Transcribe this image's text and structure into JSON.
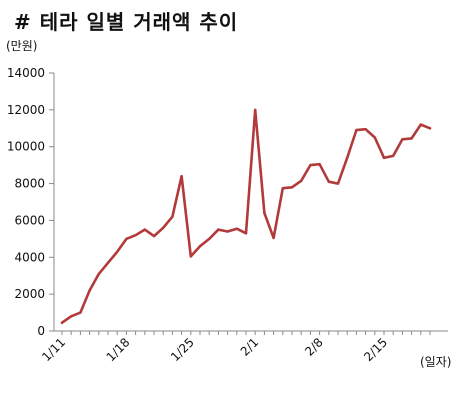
{
  "chart_data": {
    "type": "line",
    "title": "# 테라 일별 거래액 추이",
    "y_unit_label": "(만원)",
    "x_unit_label": "(일자)",
    "ylim": [
      0,
      14000
    ],
    "y_ticks": [
      0,
      2000,
      4000,
      6000,
      8000,
      10000,
      12000,
      14000
    ],
    "x_tick_labels": [
      "1/11",
      "1/18",
      "1/25",
      "2/1",
      "2/8",
      "2/15"
    ],
    "series_color": "#b23a3a",
    "grid": false,
    "x": [
      "1/11",
      "1/12",
      "1/13",
      "1/14",
      "1/15",
      "1/16",
      "1/17",
      "1/18",
      "1/19",
      "1/20",
      "1/21",
      "1/22",
      "1/23",
      "1/24",
      "1/25",
      "1/26",
      "1/27",
      "1/28",
      "1/29",
      "1/30",
      "1/31",
      "2/1",
      "2/2",
      "2/3",
      "2/4",
      "2/5",
      "2/6",
      "2/7",
      "2/8",
      "2/9",
      "2/10",
      "2/11",
      "2/12",
      "2/13",
      "2/14",
      "2/15",
      "2/16",
      "2/17",
      "2/18",
      "2/19",
      "2/20"
    ],
    "values": [
      450,
      800,
      1000,
      2200,
      3100,
      3700,
      4300,
      5000,
      5200,
      5500,
      5150,
      5600,
      6200,
      8400,
      4050,
      4600,
      5000,
      5500,
      5400,
      5550,
      5300,
      12000,
      6400,
      5050,
      7750,
      7800,
      8150,
      9000,
      9050,
      8100,
      8000,
      9400,
      10900,
      10950,
      10500,
      9400,
      9500,
      10400,
      10450,
      11200,
      11000
    ]
  }
}
